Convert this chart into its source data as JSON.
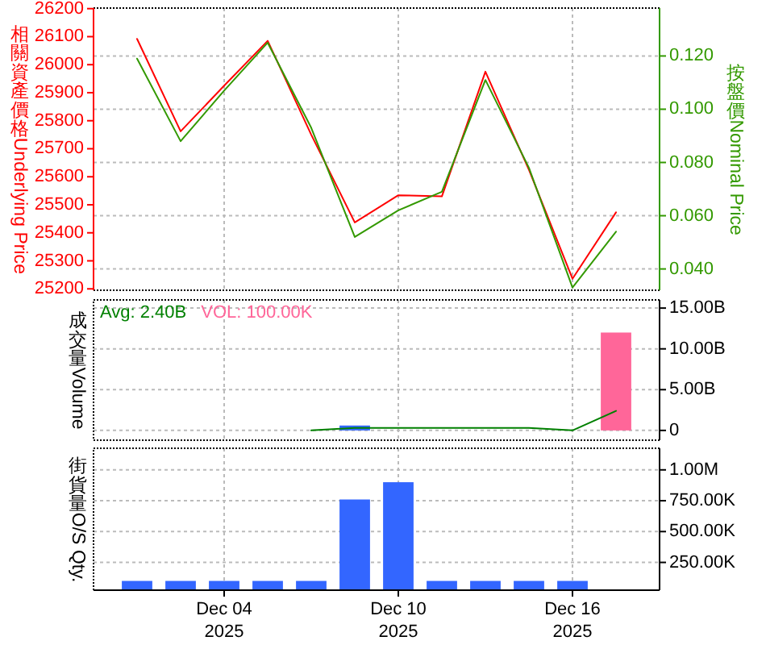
{
  "chart_data": [
    {
      "type": "line",
      "ylabel": "相關資產價格Underlying Price",
      "y2label": "按盤價Nominal Price",
      "categories": [
        null,
        null,
        null,
        null,
        null,
        null,
        null,
        null,
        null,
        null,
        null,
        null
      ],
      "series": [
        {
          "color": "#ff0000",
          "values": [
            26092,
            25762,
            25925,
            26085,
            25750,
            25437,
            25534,
            25530,
            25975,
            25625,
            25236,
            25473
          ]
        },
        {
          "color": "#339900",
          "axis": "y2",
          "values": [
            0.119,
            0.088,
            0.107,
            0.125,
            0.093,
            0.052,
            0.062,
            0.069,
            0.111,
            0.078,
            0.033,
            0.054
          ]
        }
      ],
      "ylim": [
        25195,
        26202
      ],
      "yticks": [
        25200,
        25300,
        25400,
        25500,
        25600,
        25700,
        25800,
        25900,
        26000,
        26100,
        26200
      ],
      "y2lim": [
        0.032,
        0.138
      ],
      "y2ticks": [
        {
          "value": 0.04,
          "label": "0.040"
        },
        {
          "value": 0.06,
          "label": "0.060"
        },
        {
          "value": 0.08,
          "label": "0.080"
        },
        {
          "value": 0.1,
          "label": "0.100"
        },
        {
          "value": 0.12,
          "label": "0.120"
        }
      ],
      "grid": true,
      "tick_labels": "y"
    },
    {
      "type": "bar",
      "ylabel": "成交量Volume",
      "categories": [
        null,
        null,
        null,
        null,
        null,
        null,
        null,
        null,
        null,
        null,
        null,
        null
      ],
      "series": [
        {
          "type": "line",
          "name": "Avg: 2.40B",
          "color": "#008000",
          "axis": "y2",
          "values": [
            null,
            null,
            null,
            null,
            0,
            300000000,
            300000000,
            300000000,
            300000000,
            300000000,
            0,
            2400000000
          ]
        },
        {
          "name": "VOL: 100.00K",
          "color": "#ff6699",
          "colors": [
            null,
            null,
            null,
            null,
            null,
            "#3366ff",
            null,
            null,
            null,
            null,
            null,
            "#ff6699"
          ],
          "axis": "y2",
          "values": [
            null,
            null,
            null,
            null,
            null,
            600000000,
            null,
            null,
            null,
            null,
            null,
            12000000000
          ]
        }
      ],
      "y2lim": [
        -1200000000,
        16000000000
      ],
      "y2ticks": [
        0,
        {
          "value": 5000000000,
          "label": "5.00B"
        },
        {
          "value": 10000000000,
          "label": "10.00B"
        },
        {
          "value": 15000000000,
          "label": "15.00B"
        }
      ],
      "grid": true,
      "legend": "top left",
      "tick_labels": "y"
    },
    {
      "type": "bar",
      "ylabel": "街貨量O/S Qty.",
      "categories": [
        null,
        null,
        "Dec 04\n2025",
        null,
        null,
        null,
        "Dec 10\n2025",
        null,
        null,
        null,
        "Dec 16\n2025",
        null
      ],
      "series": [
        {
          "color": "#3366ff",
          "axis": "y2",
          "values": [
            100000,
            100000,
            100000,
            100000,
            100000,
            760000,
            900000,
            100000,
            100000,
            100000,
            100000,
            null
          ]
        }
      ],
      "y2lim": [
        25000,
        1175000
      ],
      "y2ticks": [
        {
          "value": 250000,
          "label": "250.00K"
        },
        {
          "value": 500000,
          "label": "500.00K"
        },
        {
          "value": 750000,
          "label": "750.00K"
        },
        {
          "value": 1000000,
          "label": "1.00M"
        }
      ],
      "grid": true
    }
  ]
}
